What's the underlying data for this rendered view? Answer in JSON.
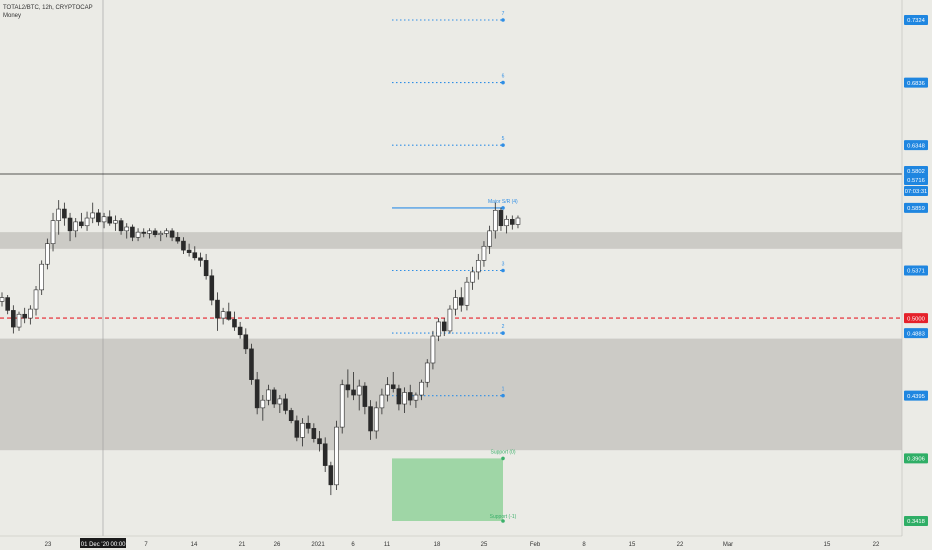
{
  "header": {
    "symbol_line": "TOTAL2/BTC, 12h, CRYPTOCAP",
    "indicator": "Money"
  },
  "colors": {
    "background": "#ebebe6",
    "candle_up": "#ffffff",
    "candle_down": "#2a2a2a",
    "zone": "#cccbc6",
    "level_line": "#2f8ee5",
    "resistance_label": "#2f8ee5",
    "support_zone": "#9fd6a6",
    "support_label": "#3bb06a",
    "dashed_red": "#e5212a",
    "price_line": "#222222"
  },
  "chart_data": {
    "type": "candlestick",
    "symbol": "TOTAL2/BTC",
    "timeframe": "12h",
    "y_range": [
      0.3418,
      0.7324
    ],
    "x_axis_labels": [
      "23",
      "01 Dec '20",
      "00:00",
      "7",
      "14",
      "21",
      "26",
      "2021",
      "6",
      "11",
      "18",
      "25",
      "Feb",
      "8",
      "15",
      "22",
      "Mar",
      "15",
      "22"
    ],
    "price_axis_labels": [
      {
        "value": "0.7324",
        "style": "blue"
      },
      {
        "value": "0.6836",
        "style": "blue"
      },
      {
        "value": "0.6348",
        "style": "blue"
      },
      {
        "value": "0.5859",
        "style": "blue"
      },
      {
        "value": "0.5802",
        "style": "blue"
      },
      {
        "value": "0.5716",
        "style": "blue"
      },
      {
        "value": "07:03:31",
        "style": "blue"
      },
      {
        "value": "0.5371",
        "style": "blue"
      },
      {
        "value": "0.5000",
        "style": "red"
      },
      {
        "value": "0.4883",
        "style": "blue"
      },
      {
        "value": "0.4395",
        "style": "blue"
      },
      {
        "value": "0.3906",
        "style": "green"
      },
      {
        "value": "0.3418",
        "style": "green"
      }
    ],
    "dashed_red_level": 0.5,
    "current_price": 0.5802,
    "zones": [
      {
        "low": 0.554,
        "high": 0.567
      },
      {
        "low": 0.397,
        "high": 0.484
      }
    ],
    "resistance_levels": [
      {
        "label": "7",
        "value": 0.7324
      },
      {
        "label": "6",
        "value": 0.6836
      },
      {
        "label": "5",
        "value": 0.6348
      },
      {
        "label": "Major S/R (4)",
        "value": 0.5859
      },
      {
        "label": "3",
        "value": 0.5371
      },
      {
        "label": "2",
        "value": 0.4883
      },
      {
        "label": "1",
        "value": 0.4395
      }
    ],
    "support_levels": [
      {
        "label": "Support (0)",
        "value": 0.3906
      },
      {
        "label": "Support (-1)",
        "value": 0.3418
      }
    ],
    "candles": [
      [
        0.513,
        0.52,
        0.509,
        0.516
      ],
      [
        0.516,
        0.518,
        0.503,
        0.506
      ],
      [
        0.506,
        0.51,
        0.488,
        0.493
      ],
      [
        0.493,
        0.505,
        0.49,
        0.503
      ],
      [
        0.503,
        0.508,
        0.496,
        0.5
      ],
      [
        0.5,
        0.51,
        0.495,
        0.507
      ],
      [
        0.507,
        0.525,
        0.502,
        0.522
      ],
      [
        0.522,
        0.545,
        0.518,
        0.542
      ],
      [
        0.542,
        0.562,
        0.538,
        0.558
      ],
      [
        0.558,
        0.582,
        0.552,
        0.576
      ],
      [
        0.576,
        0.592,
        0.565,
        0.585
      ],
      [
        0.585,
        0.59,
        0.572,
        0.578
      ],
      [
        0.578,
        0.582,
        0.56,
        0.568
      ],
      [
        0.568,
        0.578,
        0.563,
        0.575
      ],
      [
        0.575,
        0.582,
        0.57,
        0.572
      ],
      [
        0.572,
        0.583,
        0.568,
        0.578
      ],
      [
        0.578,
        0.59,
        0.574,
        0.582
      ],
      [
        0.582,
        0.585,
        0.572,
        0.575
      ],
      [
        0.575,
        0.582,
        0.57,
        0.579
      ],
      [
        0.579,
        0.584,
        0.572,
        0.574
      ],
      [
        0.574,
        0.58,
        0.568,
        0.576
      ],
      [
        0.576,
        0.578,
        0.565,
        0.568
      ],
      [
        0.568,
        0.574,
        0.562,
        0.571
      ],
      [
        0.571,
        0.573,
        0.56,
        0.563
      ],
      [
        0.563,
        0.57,
        0.56,
        0.567
      ],
      [
        0.567,
        0.57,
        0.563,
        0.566
      ],
      [
        0.566,
        0.57,
        0.562,
        0.568
      ],
      [
        0.568,
        0.57,
        0.563,
        0.565
      ],
      [
        0.565,
        0.568,
        0.56,
        0.566
      ],
      [
        0.566,
        0.57,
        0.563,
        0.568
      ],
      [
        0.568,
        0.57,
        0.56,
        0.563
      ],
      [
        0.563,
        0.567,
        0.558,
        0.56
      ],
      [
        0.56,
        0.563,
        0.55,
        0.553
      ],
      [
        0.553,
        0.558,
        0.548,
        0.551
      ],
      [
        0.551,
        0.556,
        0.545,
        0.547
      ],
      [
        0.547,
        0.551,
        0.54,
        0.545
      ],
      [
        0.545,
        0.55,
        0.53,
        0.533
      ],
      [
        0.533,
        0.538,
        0.51,
        0.514
      ],
      [
        0.514,
        0.52,
        0.49,
        0.5
      ],
      [
        0.5,
        0.508,
        0.495,
        0.505
      ],
      [
        0.505,
        0.512,
        0.498,
        0.499
      ],
      [
        0.499,
        0.505,
        0.49,
        0.493
      ],
      [
        0.493,
        0.497,
        0.484,
        0.487
      ],
      [
        0.487,
        0.492,
        0.472,
        0.476
      ],
      [
        0.476,
        0.48,
        0.448,
        0.452
      ],
      [
        0.452,
        0.458,
        0.425,
        0.43
      ],
      [
        0.43,
        0.44,
        0.42,
        0.436
      ],
      [
        0.436,
        0.448,
        0.432,
        0.444
      ],
      [
        0.444,
        0.446,
        0.43,
        0.433
      ],
      [
        0.433,
        0.44,
        0.426,
        0.437
      ],
      [
        0.437,
        0.441,
        0.425,
        0.428
      ],
      [
        0.428,
        0.43,
        0.418,
        0.42
      ],
      [
        0.42,
        0.424,
        0.404,
        0.407
      ],
      [
        0.407,
        0.422,
        0.4,
        0.418
      ],
      [
        0.418,
        0.424,
        0.41,
        0.414
      ],
      [
        0.414,
        0.418,
        0.403,
        0.406
      ],
      [
        0.406,
        0.412,
        0.396,
        0.402
      ],
      [
        0.402,
        0.407,
        0.38,
        0.385
      ],
      [
        0.385,
        0.388,
        0.362,
        0.37
      ],
      [
        0.37,
        0.42,
        0.366,
        0.415
      ],
      [
        0.415,
        0.452,
        0.41,
        0.448
      ],
      [
        0.448,
        0.46,
        0.438,
        0.444
      ],
      [
        0.444,
        0.458,
        0.436,
        0.44
      ],
      [
        0.44,
        0.452,
        0.428,
        0.447
      ],
      [
        0.447,
        0.45,
        0.425,
        0.431
      ],
      [
        0.431,
        0.436,
        0.405,
        0.412
      ],
      [
        0.412,
        0.435,
        0.406,
        0.43
      ],
      [
        0.43,
        0.445,
        0.425,
        0.44
      ],
      [
        0.44,
        0.454,
        0.435,
        0.448
      ],
      [
        0.448,
        0.458,
        0.442,
        0.445
      ],
      [
        0.445,
        0.448,
        0.428,
        0.433
      ],
      [
        0.433,
        0.446,
        0.426,
        0.442
      ],
      [
        0.442,
        0.448,
        0.432,
        0.436
      ],
      [
        0.436,
        0.442,
        0.43,
        0.44
      ],
      [
        0.44,
        0.452,
        0.436,
        0.45
      ],
      [
        0.45,
        0.468,
        0.446,
        0.465
      ],
      [
        0.465,
        0.49,
        0.46,
        0.486
      ],
      [
        0.486,
        0.5,
        0.482,
        0.497
      ],
      [
        0.497,
        0.5,
        0.486,
        0.49
      ],
      [
        0.49,
        0.51,
        0.488,
        0.507
      ],
      [
        0.507,
        0.522,
        0.502,
        0.516
      ],
      [
        0.516,
        0.524,
        0.505,
        0.51
      ],
      [
        0.51,
        0.532,
        0.506,
        0.528
      ],
      [
        0.528,
        0.54,
        0.522,
        0.536
      ],
      [
        0.536,
        0.55,
        0.53,
        0.545
      ],
      [
        0.545,
        0.56,
        0.54,
        0.556
      ],
      [
        0.556,
        0.572,
        0.55,
        0.568
      ],
      [
        0.568,
        0.59,
        0.562,
        0.584
      ],
      [
        0.584,
        0.586,
        0.568,
        0.572
      ],
      [
        0.572,
        0.58,
        0.566,
        0.577
      ],
      [
        0.577,
        0.58,
        0.569,
        0.573
      ],
      [
        0.573,
        0.58,
        0.57,
        0.578
      ]
    ]
  }
}
